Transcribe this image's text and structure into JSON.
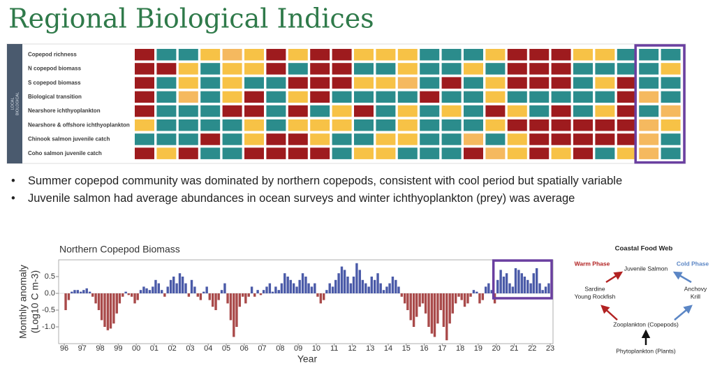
{
  "title": "Regional Biological Indices",
  "bullets": [
    "Summer copepod community was dominated by northern copepods, consistent with cool period but spatially variable",
    "Juvenile salmon had average abundances in ocean surveys and winter ichthyoplankton (prey) was average"
  ],
  "food_web": {
    "title": "Coastal Food Web",
    "warm_phase": "Warm Phase",
    "cold_phase": "Cold Phase",
    "top": "Juvenile Salmon",
    "left": [
      "Sardine",
      "Young Rockfish"
    ],
    "right": [
      "Anchovy",
      "Krill"
    ],
    "middle": "Zooplankton (Copepods)",
    "bottom": "Phytoplankton (Plants)"
  },
  "chart_data": [
    {
      "type": "heatmap",
      "side_label": [
        "LOCAL",
        "BIOLOGICAL"
      ],
      "rows": [
        "Copepod richness",
        "N copepod biomass",
        "S copepod biomass",
        "Biological transition",
        "Nearshore ichthyoplankton",
        "Nearshore & offshore ichthyoplankton",
        "Chinook salmon juvenile catch",
        "Coho salmon juvenile catch"
      ],
      "colors": [
        [
          "#9e1b1e",
          "#2b8c8c",
          "#2b8c8c",
          "#f7c246",
          "#f5b95f",
          "#f7c246",
          "#9e1b1e",
          "#f7c246",
          "#9e1b1e",
          "#9e1b1e",
          "#f7c246",
          "#f7c246",
          "#f7c246",
          "#2b8c8c",
          "#2b8c8c",
          "#2b8c8c",
          "#f7c246",
          "#9e1b1e",
          "#9e1b1e",
          "#9e1b1e",
          "#f7c246",
          "#f7c246",
          "#2b8c8c",
          "#2b8c8c",
          "#2b8c8c"
        ],
        [
          "#9e1b1e",
          "#9e1b1e",
          "#f7c246",
          "#2b8c8c",
          "#f7c246",
          "#f7c246",
          "#9e1b1e",
          "#2b8c8c",
          "#9e1b1e",
          "#9e1b1e",
          "#2b8c8c",
          "#2b8c8c",
          "#f7c246",
          "#2b8c8c",
          "#2b8c8c",
          "#f7c246",
          "#2b8c8c",
          "#9e1b1e",
          "#9e1b1e",
          "#9e1b1e",
          "#2b8c8c",
          "#2b8c8c",
          "#2b8c8c",
          "#2b8c8c",
          "#f7c246"
        ],
        [
          "#9e1b1e",
          "#2b8c8c",
          "#f7c246",
          "#2b8c8c",
          "#f7c246",
          "#2b8c8c",
          "#2b8c8c",
          "#9e1b1e",
          "#9e1b1e",
          "#9e1b1e",
          "#f7c246",
          "#f7c246",
          "#f5b95f",
          "#2b8c8c",
          "#9e1b1e",
          "#2b8c8c",
          "#f7c246",
          "#9e1b1e",
          "#9e1b1e",
          "#9e1b1e",
          "#2b8c8c",
          "#f7c246",
          "#9e1b1e",
          "#2b8c8c",
          "#2b8c8c"
        ],
        [
          "#9e1b1e",
          "#2b8c8c",
          "#f5b95f",
          "#2b8c8c",
          "#f7c246",
          "#9e1b1e",
          "#2b8c8c",
          "#f7c246",
          "#9e1b1e",
          "#2b8c8c",
          "#2b8c8c",
          "#2b8c8c",
          "#2b8c8c",
          "#9e1b1e",
          "#2b8c8c",
          "#2b8c8c",
          "#f7c246",
          "#2b8c8c",
          "#2b8c8c",
          "#2b8c8c",
          "#2b8c8c",
          "#2b8c8c",
          "#9e1b1e",
          "#f5b95f",
          "#2b8c8c"
        ],
        [
          "#9e1b1e",
          "#2b8c8c",
          "#2b8c8c",
          "#2b8c8c",
          "#9e1b1e",
          "#9e1b1e",
          "#2b8c8c",
          "#9e1b1e",
          "#2b8c8c",
          "#f7c246",
          "#9e1b1e",
          "#2b8c8c",
          "#f7c246",
          "#2b8c8c",
          "#f7c246",
          "#2b8c8c",
          "#9e1b1e",
          "#f7c246",
          "#2b8c8c",
          "#9e1b1e",
          "#2b8c8c",
          "#f7c246",
          "#9e1b1e",
          "#2b8c8c",
          "#f5b95f"
        ],
        [
          "#f7c246",
          "#2b8c8c",
          "#2b8c8c",
          "#2b8c8c",
          "#2b8c8c",
          "#f7c246",
          "#2b8c8c",
          "#f7c246",
          "#f7c246",
          "#f7c246",
          "#2b8c8c",
          "#2b8c8c",
          "#f7c246",
          "#2b8c8c",
          "#2b8c8c",
          "#2b8c8c",
          "#f7c246",
          "#9e1b1e",
          "#9e1b1e",
          "#9e1b1e",
          "#9e1b1e",
          "#9e1b1e",
          "#9e1b1e",
          "#f5b95f",
          "#f7c246"
        ],
        [
          "#2b8c8c",
          "#2b8c8c",
          "#2b8c8c",
          "#9e1b1e",
          "#2b8c8c",
          "#f7c246",
          "#9e1b1e",
          "#9e1b1e",
          "#f7c246",
          "#2b8c8c",
          "#2b8c8c",
          "#f7c246",
          "#f7c246",
          "#2b8c8c",
          "#2b8c8c",
          "#f5b95f",
          "#2b8c8c",
          "#f7c246",
          "#9e1b1e",
          "#9e1b1e",
          "#9e1b1e",
          "#9e1b1e",
          "#9e1b1e",
          "#f5b95f",
          "#2b8c8c"
        ],
        [
          "#9e1b1e",
          "#f7c246",
          "#9e1b1e",
          "#2b8c8c",
          "#2b8c8c",
          "#9e1b1e",
          "#9e1b1e",
          "#9e1b1e",
          "#9e1b1e",
          "#2b8c8c",
          "#f7c246",
          "#f7c246",
          "#2b8c8c",
          "#2b8c8c",
          "#2b8c8c",
          "#9e1b1e",
          "#f5b95f",
          "#f7c246",
          "#9e1b1e",
          "#f7c246",
          "#9e1b1e",
          "#2b8c8c",
          "#f7c246",
          "#f5b95f",
          "#2b8c8c"
        ]
      ],
      "highlight_color": "#6a3fa0"
    },
    {
      "type": "bar",
      "title": "Northern Copepod Biomass",
      "ylabel": [
        "Monthly anomaly",
        "(Log10 C m-3)"
      ],
      "xlabel": "Year",
      "positive_color": "#4a5aa8",
      "negative_color": "#a94a4a",
      "highlight_color": "#6a3fa0",
      "xlim": [
        1996,
        2023
      ],
      "ylim": [
        -1.5,
        1.0
      ],
      "yticks": [
        {
          "value": -1.0,
          "label": "-1.0"
        },
        {
          "value": -0.5,
          "label": "-0.5"
        },
        {
          "value": 0.0,
          "label": "0.0"
        },
        {
          "value": 0.5,
          "label": "0.5"
        }
      ],
      "xticks": [
        {
          "value": 1996,
          "label": "96"
        },
        {
          "value": 1997,
          "label": "97"
        },
        {
          "value": 1998,
          "label": "98"
        },
        {
          "value": 1999,
          "label": "99"
        },
        {
          "value": 2000,
          "label": "00"
        },
        {
          "value": 2001,
          "label": "01"
        },
        {
          "value": 2002,
          "label": "02"
        },
        {
          "value": 2003,
          "label": "03"
        },
        {
          "value": 2004,
          "label": "04"
        },
        {
          "value": 2005,
          "label": "05"
        },
        {
          "value": 2006,
          "label": "06"
        },
        {
          "value": 2007,
          "label": "07"
        },
        {
          "value": 2008,
          "label": "08"
        },
        {
          "value": 2009,
          "label": "09"
        },
        {
          "value": 2010,
          "label": "10"
        },
        {
          "value": 2011,
          "label": "11"
        },
        {
          "value": 2012,
          "label": "12"
        },
        {
          "value": 2013,
          "label": "13"
        },
        {
          "value": 2014,
          "label": "14"
        },
        {
          "value": 2015,
          "label": "15"
        },
        {
          "value": 2016,
          "label": "16"
        },
        {
          "value": 2017,
          "label": "17"
        },
        {
          "value": 2018,
          "label": "18"
        },
        {
          "value": 2019,
          "label": "19"
        },
        {
          "value": 2020,
          "label": "20"
        },
        {
          "value": 2021,
          "label": "21"
        },
        {
          "value": 2022,
          "label": "22"
        },
        {
          "value": 2023,
          "label": "23"
        }
      ],
      "x": [
        1996.08,
        1996.25,
        1996.42,
        1996.58,
        1996.75,
        1996.92,
        1997.08,
        1997.25,
        1997.42,
        1997.58,
        1997.75,
        1997.92,
        1998.08,
        1998.25,
        1998.42,
        1998.58,
        1998.75,
        1998.92,
        1999.08,
        1999.25,
        1999.42,
        1999.58,
        1999.75,
        1999.92,
        2000.08,
        2000.25,
        2000.42,
        2000.58,
        2000.75,
        2000.92,
        2001.08,
        2001.25,
        2001.42,
        2001.58,
        2001.75,
        2001.92,
        2002.08,
        2002.25,
        2002.42,
        2002.58,
        2002.75,
        2002.92,
        2003.08,
        2003.25,
        2003.42,
        2003.58,
        2003.75,
        2003.92,
        2004.08,
        2004.25,
        2004.42,
        2004.58,
        2004.75,
        2004.92,
        2005.08,
        2005.25,
        2005.42,
        2005.58,
        2005.75,
        2005.92,
        2006.08,
        2006.25,
        2006.42,
        2006.58,
        2006.75,
        2006.92,
        2007.08,
        2007.25,
        2007.42,
        2007.58,
        2007.75,
        2007.92,
        2008.08,
        2008.25,
        2008.42,
        2008.58,
        2008.75,
        2008.92,
        2009.08,
        2009.25,
        2009.42,
        2009.58,
        2009.75,
        2009.92,
        2010.08,
        2010.25,
        2010.42,
        2010.58,
        2010.75,
        2010.92,
        2011.08,
        2011.25,
        2011.42,
        2011.58,
        2011.75,
        2011.92,
        2012.08,
        2012.25,
        2012.42,
        2012.58,
        2012.75,
        2012.92,
        2013.08,
        2013.25,
        2013.42,
        2013.58,
        2013.75,
        2013.92,
        2014.08,
        2014.25,
        2014.42,
        2014.58,
        2014.75,
        2014.92,
        2015.08,
        2015.25,
        2015.42,
        2015.58,
        2015.75,
        2015.92,
        2016.08,
        2016.25,
        2016.42,
        2016.58,
        2016.75,
        2016.92,
        2017.08,
        2017.25,
        2017.42,
        2017.58,
        2017.75,
        2017.92,
        2018.08,
        2018.25,
        2018.42,
        2018.58,
        2018.75,
        2018.92,
        2019.08,
        2019.25,
        2019.42,
        2019.58,
        2019.75,
        2019.92,
        2020.08,
        2020.25,
        2020.42,
        2020.58,
        2020.75,
        2020.92,
        2021.08,
        2021.25,
        2021.42,
        2021.58,
        2021.75,
        2021.92,
        2022.08,
        2022.25,
        2022.42,
        2022.58,
        2022.75,
        2022.92
      ],
      "values": [
        -0.5,
        -0.2,
        0.05,
        0.1,
        0.1,
        0.05,
        0.1,
        0.15,
        0.05,
        -0.1,
        -0.3,
        -0.5,
        -0.8,
        -1.0,
        -1.1,
        -1.05,
        -0.9,
        -0.6,
        -0.3,
        -0.1,
        0.05,
        -0.05,
        -0.1,
        -0.3,
        -0.2,
        0.1,
        0.2,
        0.15,
        0.1,
        0.2,
        0.4,
        0.3,
        0.1,
        -0.1,
        0.2,
        0.4,
        0.5,
        0.3,
        0.6,
        0.5,
        0.3,
        -0.1,
        0.4,
        0.2,
        -0.1,
        -0.2,
        0.05,
        0.2,
        -0.2,
        -0.4,
        -0.5,
        -0.2,
        0.1,
        0.3,
        -0.3,
        -0.8,
        -1.3,
        -1.0,
        -0.4,
        -0.1,
        -0.3,
        -0.1,
        0.2,
        -0.1,
        0.1,
        -0.05,
        0.1,
        0.2,
        0.3,
        0.05,
        0.2,
        0.1,
        0.3,
        0.6,
        0.5,
        0.4,
        0.3,
        0.2,
        0.4,
        0.6,
        0.5,
        0.3,
        0.2,
        0.3,
        -0.1,
        -0.3,
        -0.2,
        0.1,
        0.3,
        0.2,
        0.4,
        0.6,
        0.8,
        0.7,
        0.5,
        0.3,
        0.5,
        0.9,
        0.7,
        0.4,
        0.3,
        0.2,
        0.5,
        0.4,
        0.6,
        0.3,
        0.1,
        0.2,
        0.3,
        0.5,
        0.4,
        0.2,
        -0.1,
        -0.3,
        -0.5,
        -0.8,
        -1.0,
        -0.7,
        -0.4,
        -0.3,
        -0.6,
        -1.0,
        -1.2,
        -1.3,
        -0.9,
        -0.5,
        -1.0,
        -1.4,
        -0.9,
        -0.6,
        -0.3,
        -0.1,
        -0.2,
        -0.4,
        -0.3,
        -0.1,
        0.1,
        0.05,
        -0.3,
        -0.2,
        0.2,
        0.3,
        0.1,
        -0.3,
        0.4,
        0.7,
        0.5,
        0.6,
        0.3,
        0.2,
        0.75,
        0.7,
        0.6,
        0.5,
        0.4,
        0.3,
        0.6,
        0.75,
        0.3,
        0.1,
        0.2,
        0.3
      ]
    }
  ]
}
